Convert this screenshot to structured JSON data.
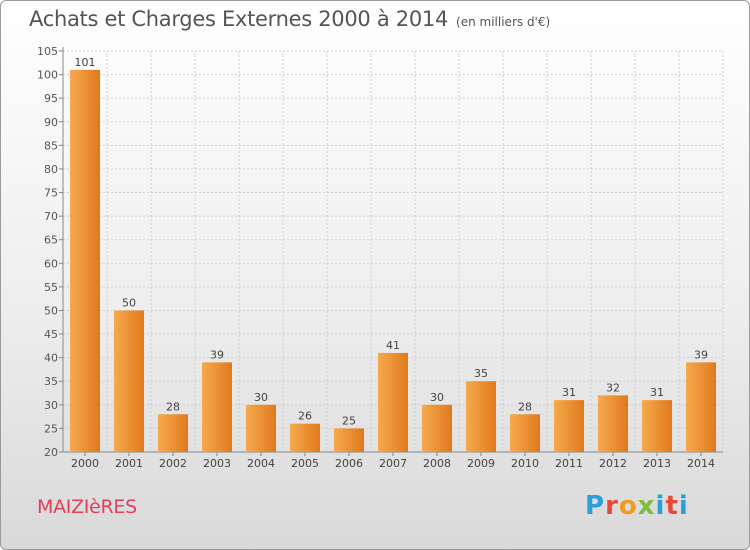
{
  "header": {
    "title": "Achats et Charges Externes 2000 à 2014",
    "subtitle": "(en milliers d'€)"
  },
  "footer": {
    "city": "MAIZIèRES",
    "logo": [
      "P",
      "r",
      "o",
      "x",
      "i",
      "t",
      "i"
    ]
  },
  "colors": {
    "bar_light": "#f7a94e",
    "bar_dark": "#e07a1c",
    "city": "#e0405a"
  },
  "chart_data": {
    "type": "bar",
    "title": "Achats et Charges Externes 2000 à 2014",
    "subtitle": "(en milliers d'€)",
    "xlabel": "",
    "ylabel": "",
    "categories": [
      "2000",
      "2001",
      "2002",
      "2003",
      "2004",
      "2005",
      "2006",
      "2007",
      "2008",
      "2009",
      "2010",
      "2011",
      "2012",
      "2013",
      "2014"
    ],
    "values": [
      101,
      50,
      28,
      39,
      30,
      26,
      25,
      41,
      30,
      35,
      28,
      31,
      32,
      31,
      39
    ],
    "ylim": [
      20,
      105
    ],
    "yticks": [
      20,
      25,
      30,
      35,
      40,
      45,
      50,
      55,
      60,
      65,
      70,
      75,
      80,
      85,
      90,
      95,
      100,
      105
    ],
    "grid": true
  }
}
